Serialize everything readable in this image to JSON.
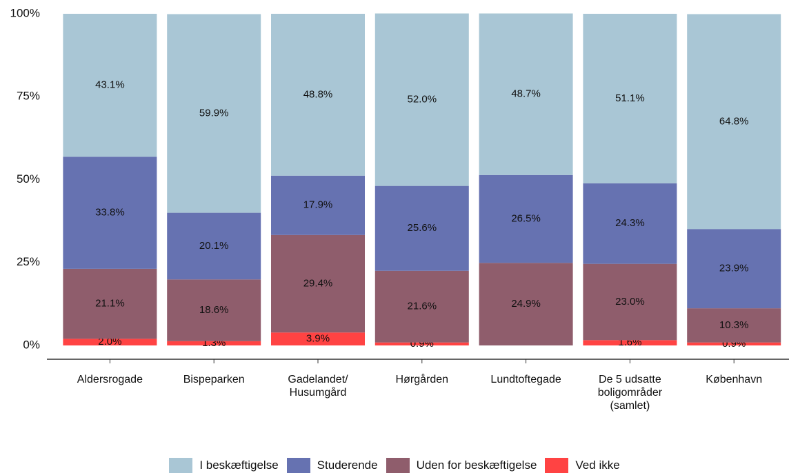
{
  "chart_data": {
    "type": "stacked_bar",
    "categories": [
      "Aldersrogade",
      "Bispeparken",
      "Gadelandet/\nHusumgård",
      "Hørgården",
      "Lundtoftegade",
      "De 5 udsatte\nboligområder\n(samlet)",
      "København"
    ],
    "series": [
      {
        "name": "Ved ikke",
        "color": "#ff4343",
        "values": [
          2.0,
          1.3,
          3.9,
          0.9,
          0,
          1.6,
          0.9
        ],
        "value_labels": [
          "2.0%",
          "1.3%",
          "3.9%",
          "0.9%",
          null,
          "1.6%",
          "0.9%"
        ]
      },
      {
        "name": "Uden for beskæftigelse",
        "color": "#8f5d6c",
        "values": [
          21.1,
          18.6,
          29.4,
          21.6,
          24.9,
          23.0,
          10.3
        ],
        "value_labels": [
          "21.1%",
          "18.6%",
          "29.4%",
          "21.6%",
          "24.9%",
          "23.0%",
          "10.3%"
        ]
      },
      {
        "name": "Studerende",
        "color": "#6672b1",
        "values": [
          33.8,
          20.1,
          17.9,
          25.6,
          26.5,
          24.3,
          23.9
        ],
        "value_labels": [
          "33.8%",
          "20.1%",
          "17.9%",
          "25.6%",
          "26.5%",
          "24.3%",
          "23.9%"
        ]
      },
      {
        "name": "I beskæftigelse",
        "color": "#a9c6d5",
        "values": [
          43.1,
          59.9,
          48.8,
          52.0,
          48.7,
          51.1,
          64.8
        ],
        "value_labels": [
          "43.1%",
          "59.9%",
          "48.8%",
          "52.0%",
          "48.7%",
          "51.1%",
          "64.8%"
        ]
      }
    ],
    "ylim": [
      0,
      100
    ],
    "yticks": [
      {
        "value": 0,
        "label": "0%"
      },
      {
        "value": 25,
        "label": "25%"
      },
      {
        "value": 50,
        "label": "50%"
      },
      {
        "value": 75,
        "label": "75%"
      },
      {
        "value": 100,
        "label": "100%"
      }
    ],
    "legend": "bottom"
  }
}
